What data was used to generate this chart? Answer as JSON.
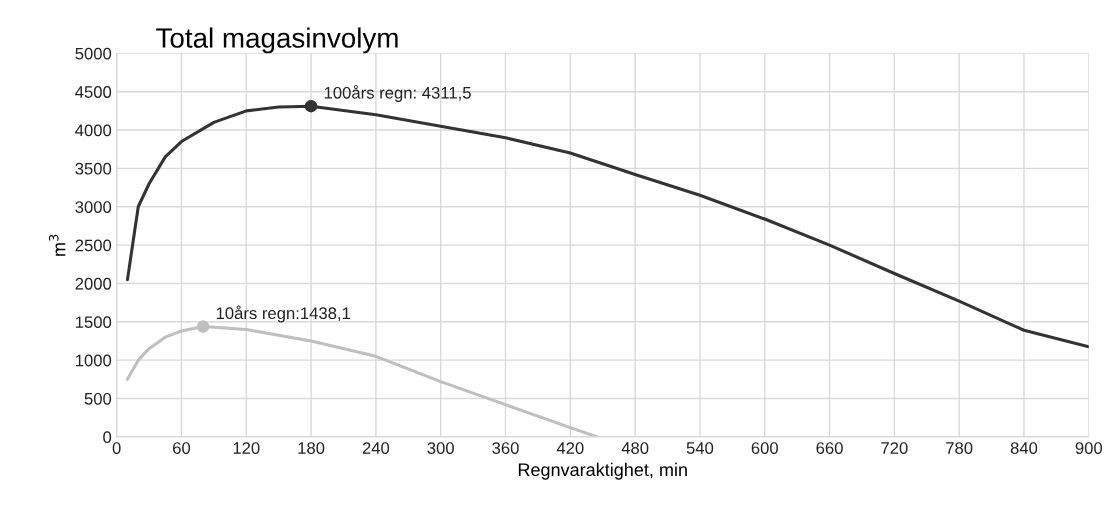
{
  "chart_data": {
    "type": "line",
    "title": "Total magasinvolym",
    "xlabel": "Regnvaraktighet, min",
    "ylabel": "m$^{3}$",
    "xlim": [
      0,
      900
    ],
    "xticks": [
      0,
      60,
      120,
      180,
      240,
      300,
      360,
      420,
      480,
      540,
      600,
      660,
      720,
      780,
      840,
      900
    ],
    "ylim": [
      0,
      5000
    ],
    "yticks": [
      0,
      500,
      1000,
      1500,
      2000,
      2500,
      3000,
      3500,
      4000,
      4500,
      5000
    ],
    "grid": true,
    "legend": false,
    "series": [
      {
        "color": "#333333",
        "x": [
          10,
          20,
          30,
          45,
          60,
          90,
          120,
          150,
          180,
          240,
          300,
          360,
          420,
          480,
          540,
          600,
          660,
          720,
          780,
          840,
          900
        ],
        "values": [
          2050,
          3000,
          3300,
          3650,
          3850,
          4100,
          4250,
          4300,
          4311.5,
          4200,
          4050,
          3900,
          3700,
          3420,
          3150,
          2840,
          2500,
          2130,
          1770,
          1390,
          1175
        ]
      },
      {
        "color": "#bfbfbf",
        "x": [
          10,
          20,
          30,
          45,
          60,
          80,
          120,
          180,
          240,
          300,
          360,
          420,
          445
        ],
        "values": [
          750,
          1000,
          1150,
          1300,
          1380,
          1438.1,
          1400,
          1250,
          1050,
          720,
          420,
          120,
          0
        ]
      }
    ],
    "annotations": [
      {
        "text": "100års regn: 4311,5",
        "x": 180,
        "y": 4311.5
      },
      {
        "text": "10års regn:1438,1",
        "x": 80,
        "y": 1438.1
      }
    ]
  }
}
